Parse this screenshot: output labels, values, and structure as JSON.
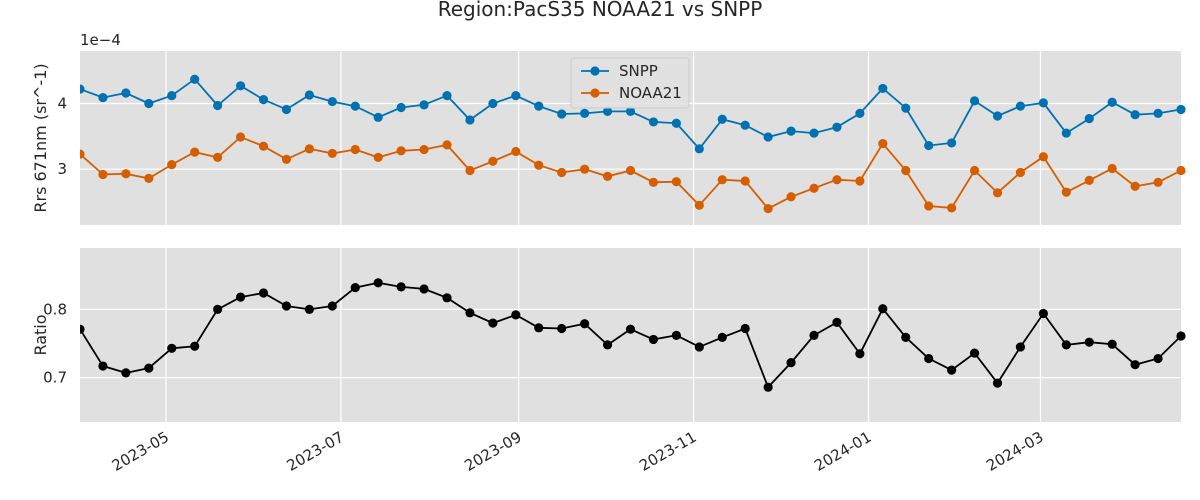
{
  "chart_data": {
    "title": "Region:PacS35 NOAA21 vs SNPP",
    "x_dates": [
      "2023-04-01",
      "2023-04-09",
      "2023-04-17",
      "2023-04-25",
      "2023-05-03",
      "2023-05-11",
      "2023-05-19",
      "2023-05-27",
      "2023-06-04",
      "2023-06-12",
      "2023-06-20",
      "2023-06-28",
      "2023-07-06",
      "2023-07-14",
      "2023-07-22",
      "2023-07-30",
      "2023-08-07",
      "2023-08-15",
      "2023-08-23",
      "2023-08-31",
      "2023-09-08",
      "2023-09-16",
      "2023-09-24",
      "2023-10-02",
      "2023-10-10",
      "2023-10-18",
      "2023-10-26",
      "2023-11-03",
      "2023-11-11",
      "2023-11-19",
      "2023-11-27",
      "2023-12-05",
      "2023-12-13",
      "2023-12-21",
      "2023-12-29",
      "2024-01-06",
      "2024-01-14",
      "2024-01-22",
      "2024-01-30",
      "2024-02-07",
      "2024-02-15",
      "2024-02-23",
      "2024-03-02",
      "2024-03-10",
      "2024-03-18",
      "2024-03-26",
      "2024-04-03",
      "2024-04-11",
      "2024-04-19"
    ],
    "xlim": [
      "2023-04-01",
      "2024-04-19"
    ],
    "x_ticks": [
      "2023-05-01",
      "2023-07-01",
      "2023-09-01",
      "2023-11-01",
      "2024-01-01",
      "2024-03-01"
    ],
    "x_tick_labels": [
      "2023-05",
      "2023-07",
      "2023-09",
      "2023-11",
      "2024-01",
      "2024-03"
    ],
    "panels": [
      {
        "type": "line",
        "ylabel": "Rrs 671nm (sr^-1)",
        "offset_text": "1e−4",
        "ylim": [
          2.15,
          4.8
        ],
        "y_ticks": [
          3,
          4
        ],
        "y_tick_labels": [
          "3",
          "4"
        ],
        "legend_position": "upper center",
        "series": [
          {
            "name": "SNPP",
            "color": "#0072b2",
            "values": [
              4.22,
              4.09,
              4.16,
              4.0,
              4.12,
              4.37,
              3.97,
              4.27,
              4.06,
              3.91,
              4.13,
              4.03,
              3.96,
              3.79,
              3.94,
              3.98,
              4.12,
              3.75,
              4.0,
              4.12,
              3.96,
              3.84,
              3.85,
              3.88,
              3.88,
              3.72,
              3.7,
              3.31,
              3.76,
              3.67,
              3.49,
              3.58,
              3.55,
              3.64,
              3.85,
              4.23,
              3.93,
              3.36,
              3.4,
              4.04,
              3.81,
              3.96,
              4.01,
              3.55,
              3.77,
              4.02,
              3.83,
              3.85,
              3.91
            ]
          },
          {
            "name": "NOAA21",
            "color": "#d55e00",
            "values": [
              3.23,
              2.92,
              2.93,
              2.86,
              3.07,
              3.26,
              3.18,
              3.49,
              3.35,
              3.15,
              3.31,
              3.24,
              3.3,
              3.18,
              3.28,
              3.3,
              3.37,
              2.98,
              3.12,
              3.27,
              3.06,
              2.95,
              3.0,
              2.89,
              2.98,
              2.8,
              2.81,
              2.45,
              2.84,
              2.82,
              2.4,
              2.58,
              2.71,
              2.84,
              2.82,
              3.39,
              2.98,
              2.44,
              2.41,
              2.98,
              2.64,
              2.95,
              3.19,
              2.65,
              2.83,
              3.01,
              2.74,
              2.8,
              2.98
            ]
          }
        ]
      },
      {
        "type": "line",
        "ylabel": "Ratio",
        "ylim": [
          0.635,
          0.89
        ],
        "y_ticks": [
          0.7,
          0.8
        ],
        "y_tick_labels": [
          "0.7",
          "0.8"
        ],
        "series": [
          {
            "color": "#000000",
            "values": [
              0.771,
              0.717,
              0.707,
              0.714,
              0.743,
              0.746,
              0.8,
              0.818,
              0.824,
              0.805,
              0.8,
              0.805,
              0.832,
              0.839,
              0.833,
              0.83,
              0.817,
              0.795,
              0.78,
              0.792,
              0.773,
              0.772,
              0.779,
              0.748,
              0.771,
              0.756,
              0.762,
              0.745,
              0.759,
              0.772,
              0.686,
              0.722,
              0.762,
              0.781,
              0.735,
              0.801,
              0.759,
              0.728,
              0.711,
              0.736,
              0.692,
              0.745,
              0.794,
              0.748,
              0.752,
              0.749,
              0.719,
              0.728,
              0.761
            ]
          }
        ]
      }
    ],
    "style": {
      "axes_facecolor": "#e0e0e0",
      "grid_color": "#ffffff",
      "text_color": "#262626"
    }
  }
}
